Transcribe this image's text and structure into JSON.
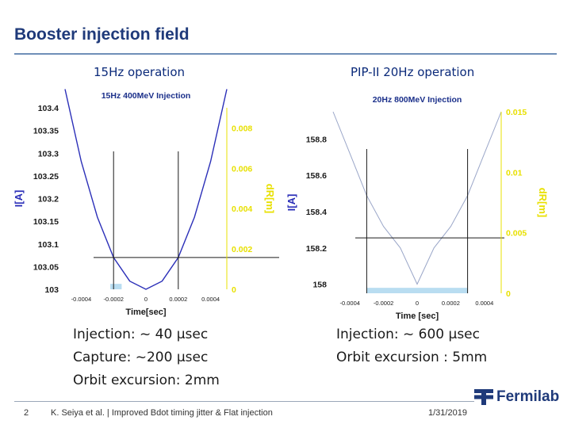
{
  "slide": {
    "title": "Booster injection field",
    "page_number": "2",
    "footer_text": "K. Seiya et al. | Improved Bdot timing jitter & Flat injection",
    "date": "1/31/2019",
    "logo_text": "Fermilab"
  },
  "left_section": {
    "heading": "15Hz operation",
    "notes": [
      "Injection: ~ 40 µsec",
      "Capture: ~200 µsec",
      "Orbit excursion: 2mm"
    ]
  },
  "right_section": {
    "heading": "PIP-II 20Hz operation",
    "notes": [
      "Injection: ~ 600 µsec",
      "Orbit excursion : 5mm"
    ]
  },
  "colors": {
    "title": "#1f3a7a",
    "field_curve_left": "#2b2fb8",
    "field_curve_right": "#9aa6c8",
    "right_axis": "#e8e000",
    "marker_lines": "#1a1a1a",
    "injection_band": "#a8d4ee"
  },
  "chart_data": [
    {
      "type": "line",
      "title": "15Hz 400MeV Injection",
      "xlabel": "Time[sec]",
      "ylabel": "I[A]",
      "y2label": "dR[m]",
      "xlim": [
        -0.0005,
        0.0005
      ],
      "ylim": [
        103.0,
        103.4
      ],
      "y2lim": [
        0,
        0.009
      ],
      "x_ticks": [
        -0.0004,
        -0.0002,
        0,
        0.0002,
        0.0004
      ],
      "x_tick_labels": [
        "-0.0004",
        "-0.0002",
        "0",
        "0.0002",
        "0.0004"
      ],
      "y_ticks": [
        103.0,
        103.05,
        103.1,
        103.15,
        103.2,
        103.25,
        103.3,
        103.35,
        103.4
      ],
      "y_tick_labels": [
        "103",
        "103.05",
        "103.1",
        "103.15",
        "103.2",
        "103.25",
        "103.3",
        "103.35",
        "103.4"
      ],
      "y2_ticks": [
        0,
        0.002,
        0.004,
        0.006,
        0.008
      ],
      "y2_tick_labels": [
        "0",
        "0.002",
        "0.004",
        "0.006",
        "0.008"
      ],
      "series": [
        {
          "x": [
            -0.0005,
            -0.0004,
            -0.0003,
            -0.0002,
            -0.0001,
            0,
            0.0001,
            0.0002,
            0.0003,
            0.0004,
            0.0005
          ],
          "y": [
            103.441,
            103.282,
            103.159,
            103.07,
            103.018,
            103.0,
            103.018,
            103.07,
            103.159,
            103.282,
            103.441
          ]
        }
      ],
      "vertical_markers": [
        -0.0002,
        0.0002
      ],
      "horizontal_marker": 103.07,
      "injection_band": [
        -0.00022,
        -0.00015
      ],
      "band_height": 103.012
    },
    {
      "type": "line",
      "title": "20Hz 800MeV Injection",
      "xlabel": "Time [sec]",
      "ylabel": "I[A]",
      "y2label": "dR[m]",
      "xlim": [
        -0.0005,
        0.0005
      ],
      "ylim": [
        157.95,
        158.95
      ],
      "y2lim": [
        0,
        0.015
      ],
      "x_ticks": [
        -0.0004,
        -0.0002,
        0,
        0.0002,
        0.0004
      ],
      "x_tick_labels": [
        "-0.0004",
        "-0.0002",
        "0",
        "0.0002",
        "0.0004"
      ],
      "y_ticks": [
        158.0,
        158.2,
        158.4,
        158.6,
        158.8
      ],
      "y_tick_labels": [
        "158",
        "158.2",
        "158.4",
        "158.6",
        "158.8"
      ],
      "y2_ticks": [
        0,
        0.005,
        0.01,
        0.015
      ],
      "y2_tick_labels": [
        "0",
        "0.005",
        "0.01",
        "0.015"
      ],
      "series": [
        {
          "x": [
            -0.0005,
            -0.0004,
            -0.0003,
            -0.0002,
            -0.0001,
            0,
            0.0001,
            0.0002,
            0.0003,
            0.0004,
            0.0005
          ],
          "y": [
            158.95,
            158.72,
            158.488,
            158.318,
            158.2,
            158.0,
            158.2,
            158.318,
            158.488,
            158.72,
            158.95
          ]
        }
      ],
      "vertical_markers": [
        -0.0003,
        0.0003
      ],
      "horizontal_marker": 158.255,
      "injection_band": [
        -0.0003,
        0.0003
      ],
      "band_height": 157.98
    }
  ]
}
